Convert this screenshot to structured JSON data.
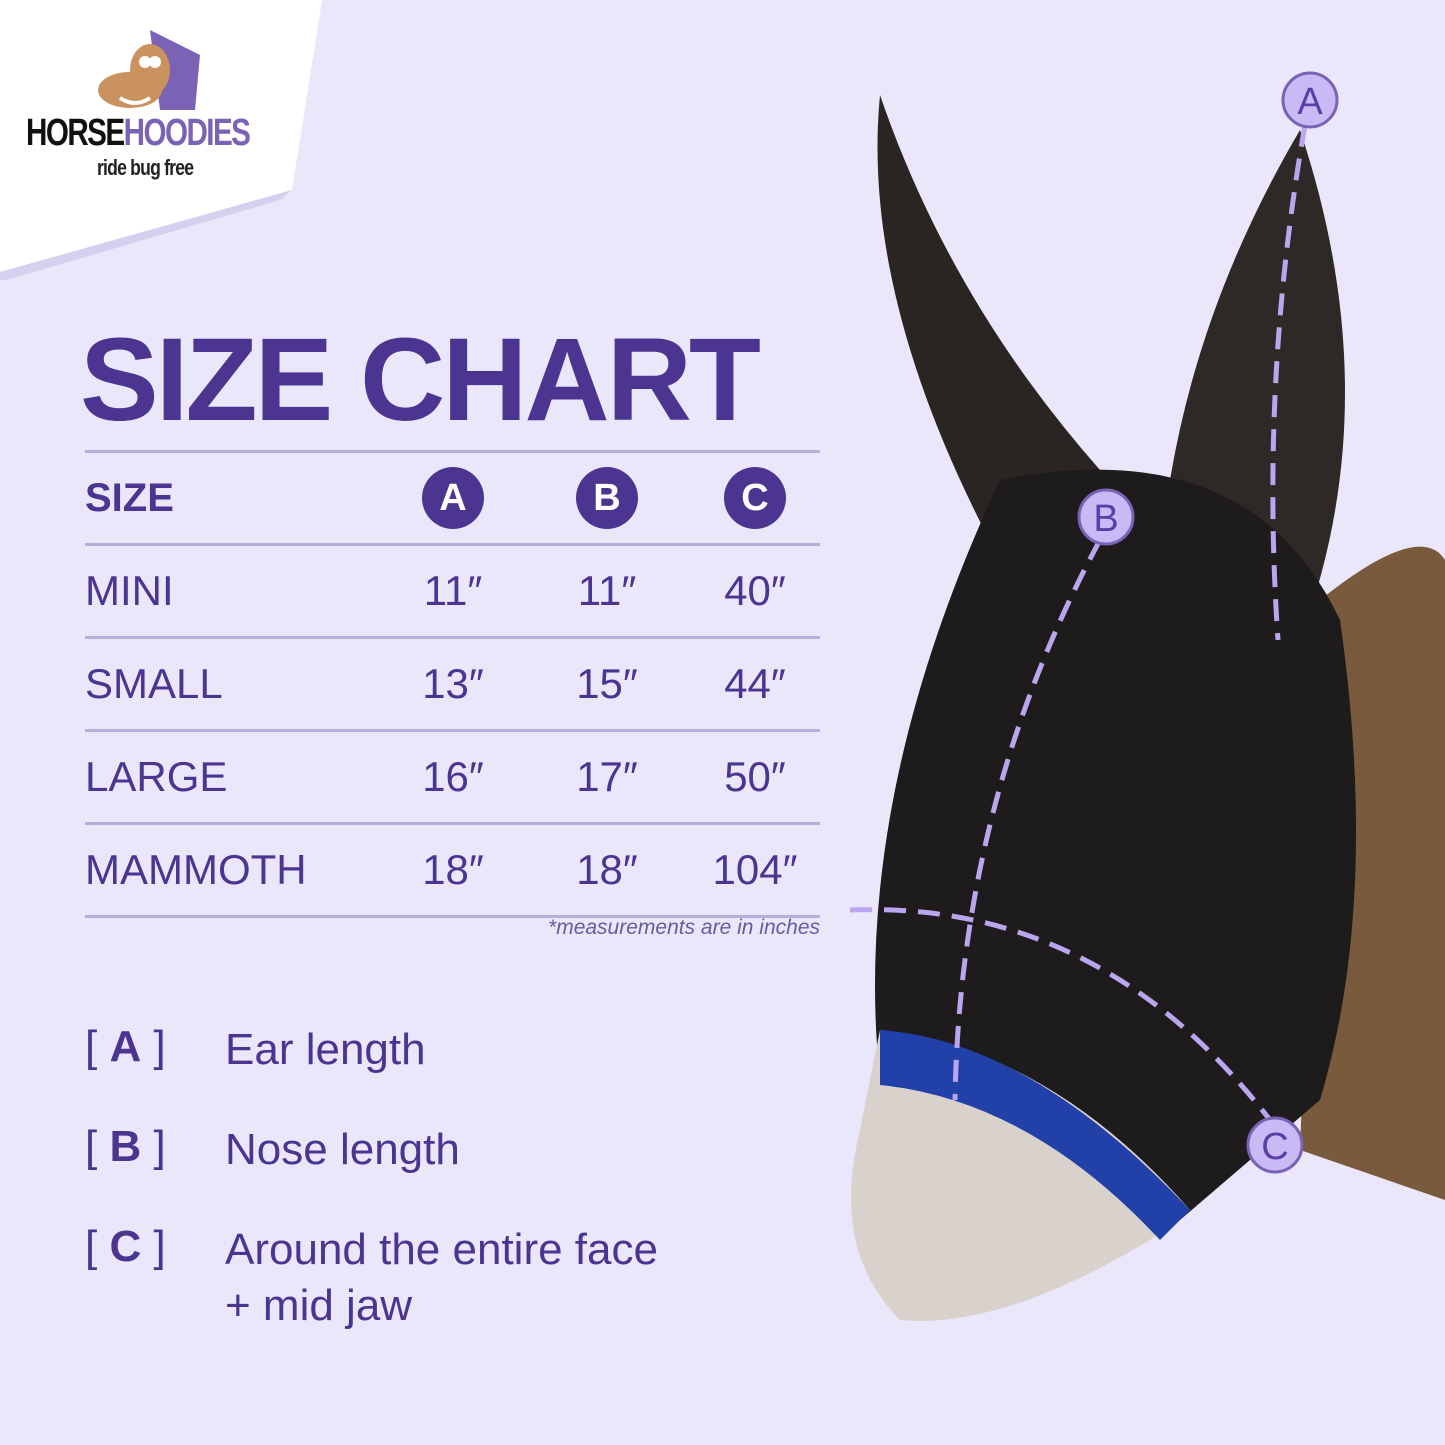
{
  "brand": {
    "name_part1": "HORSE",
    "name_part2": "HOODIES",
    "tagline": "ride bug free"
  },
  "title": "SIZE CHART",
  "table": {
    "headers": [
      "SIZE",
      "A",
      "B",
      "C"
    ],
    "rows": [
      [
        "MINI",
        "11″",
        "11″",
        "40″"
      ],
      [
        "SMALL",
        "13″",
        "15″",
        "44″"
      ],
      [
        "LARGE",
        "16″",
        "17″",
        "50″"
      ],
      [
        "MAMMOTH",
        "18″",
        "18″",
        "104″"
      ]
    ]
  },
  "note": "*measurements are in inches",
  "legend": [
    {
      "key": "A",
      "label": "Ear length"
    },
    {
      "key": "B",
      "label": "Nose length"
    },
    {
      "key": "C",
      "label": "Around the entire face",
      "label2": "+ mid jaw"
    }
  ],
  "photo_markers": [
    "A",
    "B",
    "C"
  ],
  "colors": {
    "background": "#ebe7fa",
    "accent": "#4b3590",
    "marker": "#b9a6ef"
  }
}
